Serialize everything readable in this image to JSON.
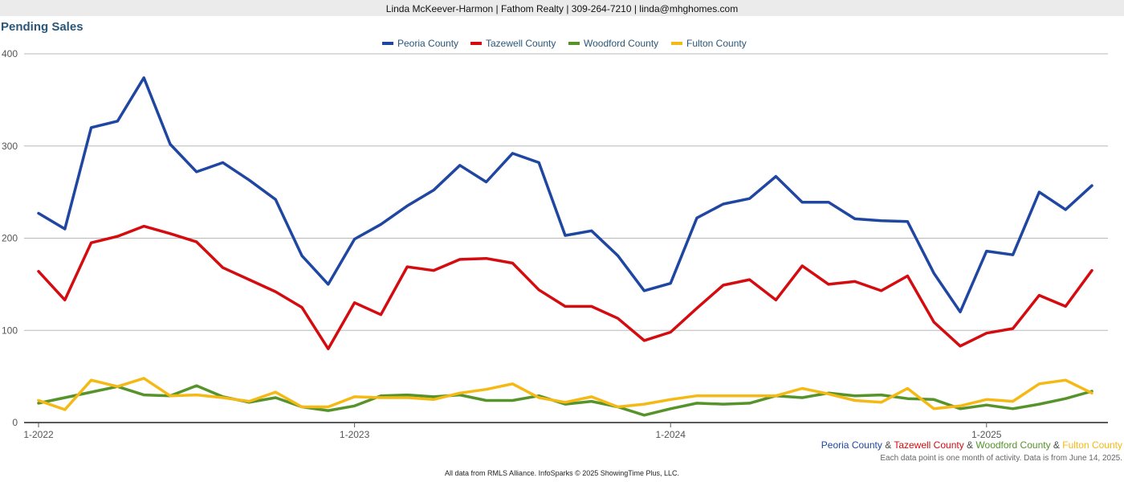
{
  "header": {
    "agent_line": "Linda McKeever-Harmon | Fathom Realty | 309-264-7210 | linda@mhghomes.com"
  },
  "chart_data": {
    "type": "line",
    "title": "Pending Sales",
    "ylim": [
      0,
      400
    ],
    "yticks": [
      "0",
      "100",
      "200",
      "300",
      "400"
    ],
    "xtick_labels": [
      "1-2022",
      "1-2023",
      "1-2024",
      "1-2025"
    ],
    "grid": true,
    "legend_position": "top",
    "x": [
      "2022-01",
      "2022-02",
      "2022-03",
      "2022-04",
      "2022-05",
      "2022-06",
      "2022-07",
      "2022-08",
      "2022-09",
      "2022-10",
      "2022-11",
      "2022-12",
      "2023-01",
      "2023-02",
      "2023-03",
      "2023-04",
      "2023-05",
      "2023-06",
      "2023-07",
      "2023-08",
      "2023-09",
      "2023-10",
      "2023-11",
      "2023-12",
      "2024-01",
      "2024-02",
      "2024-03",
      "2024-04",
      "2024-05",
      "2024-06",
      "2024-07",
      "2024-08",
      "2024-09",
      "2024-10",
      "2024-11",
      "2024-12",
      "2025-01",
      "2025-02",
      "2025-03",
      "2025-04",
      "2025-05"
    ],
    "series": [
      {
        "name": "Peoria County",
        "color": "#1f47a2",
        "values": [
          227,
          210,
          320,
          327,
          374,
          302,
          272,
          282,
          263,
          242,
          181,
          150,
          199,
          215,
          235,
          252,
          279,
          261,
          292,
          282,
          203,
          208,
          181,
          143,
          151,
          222,
          237,
          243,
          267,
          239,
          239,
          221,
          219,
          218,
          162,
          120,
          186,
          182,
          250,
          231,
          257
        ]
      },
      {
        "name": "Tazewell County",
        "color": "#d40c10",
        "values": [
          164,
          133,
          195,
          202,
          213,
          205,
          196,
          168,
          155,
          142,
          125,
          80,
          130,
          117,
          169,
          165,
          177,
          178,
          173,
          144,
          126,
          126,
          113,
          89,
          98,
          124,
          149,
          155,
          133,
          170,
          150,
          153,
          143,
          159,
          109,
          83,
          97,
          102,
          138,
          126,
          165
        ]
      },
      {
        "name": "Woodford County",
        "color": "#56932a",
        "values": [
          21,
          27,
          33,
          39,
          30,
          29,
          40,
          28,
          22,
          27,
          17,
          13,
          18,
          29,
          30,
          28,
          30,
          24,
          24,
          29,
          20,
          23,
          17,
          8,
          15,
          21,
          20,
          21,
          29,
          27,
          32,
          29,
          30,
          26,
          25,
          15,
          19,
          15,
          20,
          26,
          34
        ]
      },
      {
        "name": "Fulton County",
        "color": "#f5b915",
        "values": [
          24,
          14,
          46,
          39,
          48,
          29,
          30,
          27,
          23,
          33,
          17,
          17,
          28,
          27,
          27,
          25,
          32,
          36,
          42,
          27,
          22,
          28,
          17,
          20,
          25,
          29,
          29,
          29,
          29,
          37,
          31,
          24,
          22,
          37,
          15,
          18,
          25,
          23,
          42,
          46,
          32
        ]
      }
    ]
  },
  "caption": {
    "amp": "&",
    "note": "Each data point is one month of activity. Data is from June 14, 2025."
  },
  "footer": {
    "text": "All data from RMLS Alliance. InfoSparks © 2025 ShowingTime Plus, LLC."
  }
}
